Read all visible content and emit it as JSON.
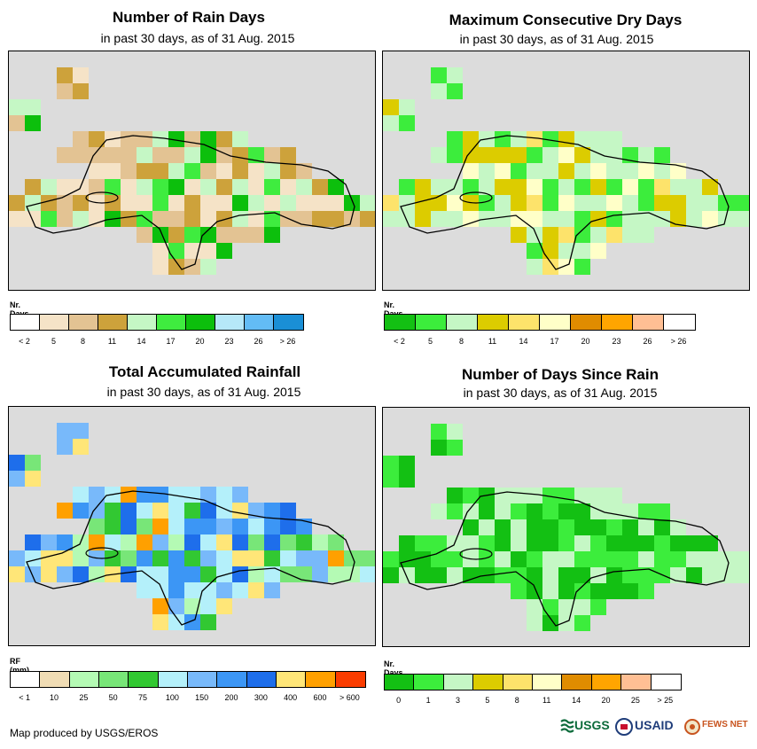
{
  "panels": [
    {
      "title": "Number of Rain Days",
      "subtitle": "in past 30 days, as of 31 Aug. 2015",
      "legend": {
        "title": "Nr. Days",
        "colors": [
          "#ffffff",
          "#f5e3c7",
          "#e3c393",
          "#cda23b",
          "#c5f7c5",
          "#3fec3f",
          "#0cbf0c",
          "#b6e8f8",
          "#63bcf5",
          "#1a8fd6"
        ],
        "labels": [
          "< 2",
          "5",
          "8",
          "11",
          "14",
          "17",
          "20",
          "23",
          "26",
          "> 26"
        ]
      }
    },
    {
      "title": "Maximum Consecutive Dry Days",
      "subtitle": "in past 30 days, as of 31 Aug. 2015",
      "legend": {
        "title": "Nr. Days",
        "colors": [
          "#13c013",
          "#3ced3c",
          "#c5f7c5",
          "#dccc00",
          "#fde36b",
          "#ffffc8",
          "#e08c00",
          "#ffa500",
          "#ffbf94",
          "#ffffff"
        ],
        "labels": [
          "< 2",
          "5",
          "8",
          "11",
          "14",
          "17",
          "20",
          "23",
          "26",
          "> 26"
        ]
      }
    },
    {
      "title": "Total Accumulated Rainfall",
      "subtitle": "in past 30 days, as of 31 Aug. 2015",
      "legend": {
        "title": "RF (mm)",
        "colors": [
          "#ffffff",
          "#f0dcb4",
          "#b4fab4",
          "#78e678",
          "#32c832",
          "#b4f0fa",
          "#78b9fa",
          "#3c96f5",
          "#1e6eeb",
          "#ffe678",
          "#ffa000",
          "#fa3c00"
        ],
        "labels": [
          "< 1",
          "10",
          "25",
          "50",
          "75",
          "100",
          "150",
          "200",
          "300",
          "400",
          "600",
          "> 600"
        ]
      }
    },
    {
      "title": "Number of Days Since Rain",
      "subtitle": "in past 30 days, as of 31 Aug. 2015",
      "legend": {
        "title": "Nr. Days",
        "colors": [
          "#13c013",
          "#3ced3c",
          "#c5f7c5",
          "#dccc00",
          "#fde36b",
          "#ffffc8",
          "#e08c00",
          "#ffa500",
          "#ffbf94",
          "#ffffff"
        ],
        "labels": [
          "0",
          "1",
          "3",
          "5",
          "8",
          "11",
          "14",
          "20",
          "25",
          "> 25"
        ]
      }
    }
  ],
  "footer": {
    "credit": "Map produced by USGS/EROS",
    "logos": [
      "USGS",
      "USAID",
      "FEWS NET"
    ]
  }
}
